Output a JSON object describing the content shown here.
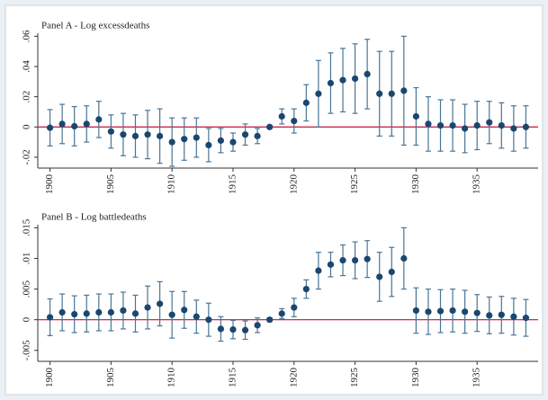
{
  "chart_data": [
    {
      "type": "errorbar",
      "title": "Panel A - Log excessdeaths",
      "x": [
        1900,
        1901,
        1902,
        1903,
        1904,
        1905,
        1906,
        1907,
        1908,
        1909,
        1910,
        1911,
        1912,
        1913,
        1914,
        1915,
        1916,
        1917,
        1918,
        1919,
        1920,
        1921,
        1922,
        1923,
        1924,
        1925,
        1926,
        1927,
        1928,
        1929,
        1930,
        1931,
        1932,
        1933,
        1934,
        1935,
        1936,
        1937,
        1938,
        1939
      ],
      "values": [
        -0.0005,
        0.002,
        0.0005,
        0.002,
        0.005,
        -0.003,
        -0.005,
        -0.006,
        -0.005,
        -0.006,
        -0.01,
        -0.008,
        -0.007,
        -0.012,
        -0.009,
        -0.01,
        -0.005,
        -0.006,
        0.0,
        0.007,
        0.004,
        0.016,
        0.022,
        0.029,
        0.031,
        0.032,
        0.035,
        0.022,
        0.022,
        0.024,
        0.007,
        0.002,
        0.001,
        0.001,
        -0.001,
        0.001,
        0.003,
        0.001,
        -0.001,
        0.0
      ],
      "errors": [
        0.012,
        0.013,
        0.013,
        0.012,
        0.012,
        0.011,
        0.014,
        0.014,
        0.016,
        0.018,
        0.016,
        0.014,
        0.013,
        0.011,
        0.008,
        0.006,
        0.007,
        0.005,
        0.001,
        0.005,
        0.008,
        0.012,
        0.022,
        0.02,
        0.021,
        0.023,
        0.023,
        0.028,
        0.028,
        0.036,
        0.019,
        0.018,
        0.017,
        0.017,
        0.016,
        0.016,
        0.014,
        0.015,
        0.015,
        0.014
      ],
      "color": "#1a476f",
      "bar_color": "#4a7595",
      "hline": 0,
      "hline_color": "#c8103a",
      "xlim": [
        1899,
        1940
      ],
      "xticks": [
        1900,
        1905,
        1910,
        1915,
        1920,
        1925,
        1930,
        1935
      ],
      "ylim": [
        -0.026,
        0.062
      ],
      "yticks": [
        {
          "value": -0.02,
          "label": "-.02"
        },
        0,
        {
          "value": 0.02,
          "label": ".02"
        },
        {
          "value": 0.04,
          "label": ".04"
        },
        {
          "value": 0.06,
          "label": ".06"
        }
      ],
      "grid": false
    },
    {
      "type": "errorbar",
      "title": "Panel B - Log battledeaths",
      "x": [
        1900,
        1901,
        1902,
        1903,
        1904,
        1905,
        1906,
        1907,
        1908,
        1909,
        1910,
        1911,
        1912,
        1913,
        1914,
        1915,
        1916,
        1917,
        1918,
        1919,
        1920,
        1921,
        1922,
        1923,
        1924,
        1925,
        1926,
        1927,
        1928,
        1929,
        1930,
        1931,
        1932,
        1933,
        1934,
        1935,
        1936,
        1937,
        1938,
        1939
      ],
      "values": [
        0.0004,
        0.0012,
        0.0009,
        0.001,
        0.0012,
        0.0012,
        0.0015,
        0.001,
        0.002,
        0.0026,
        0.0008,
        0.0016,
        0.0005,
        0.0,
        -0.0015,
        -0.0016,
        -0.0017,
        -0.0009,
        0.0,
        0.001,
        0.002,
        0.005,
        0.008,
        0.009,
        0.0097,
        0.0097,
        0.0099,
        0.007,
        0.0078,
        0.01,
        0.0015,
        0.0013,
        0.0014,
        0.0015,
        0.0013,
        0.0011,
        0.0007,
        0.0008,
        0.0005,
        0.0003
      ],
      "errors": [
        0.003,
        0.003,
        0.003,
        0.003,
        0.003,
        0.003,
        0.003,
        0.003,
        0.0035,
        0.0036,
        0.0038,
        0.003,
        0.0027,
        0.0027,
        0.002,
        0.0015,
        0.0015,
        0.0012,
        0.0003,
        0.0008,
        0.0015,
        0.0015,
        0.003,
        0.002,
        0.0025,
        0.003,
        0.003,
        0.004,
        0.004,
        0.005,
        0.0037,
        0.0037,
        0.0035,
        0.0035,
        0.0035,
        0.003,
        0.003,
        0.003,
        0.003,
        0.003
      ],
      "color": "#1a476f",
      "bar_color": "#4a7595",
      "hline": 0,
      "hline_color": "#c8103a",
      "xlim": [
        1899,
        1940
      ],
      "xticks": [
        1900,
        1905,
        1910,
        1915,
        1920,
        1925,
        1930,
        1935
      ],
      "ylim": [
        -0.0065,
        0.0155
      ],
      "yticks": [
        {
          "value": -0.005,
          "label": "-.005"
        },
        0,
        {
          "value": 0.005,
          "label": ".005"
        },
        {
          "value": 0.01,
          "label": ".01"
        },
        {
          "value": 0.015,
          "label": ".015"
        }
      ],
      "grid": false
    }
  ]
}
